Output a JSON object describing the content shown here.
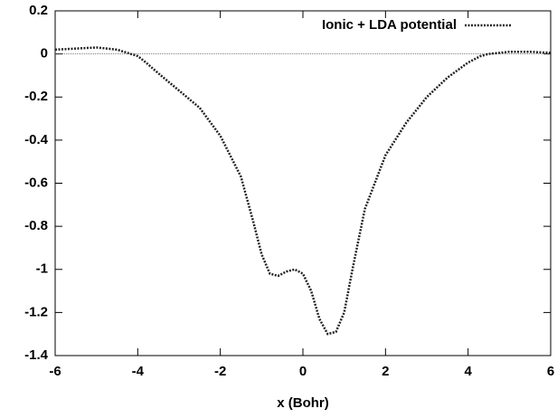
{
  "chart_data": {
    "type": "line",
    "xlabel": "x (Bohr)",
    "x": [
      -6,
      -5.5,
      -5,
      -4.5,
      -4,
      -3.8,
      -3.5,
      -3,
      -2.5,
      -2,
      -1.5,
      -1.2,
      -1,
      -0.8,
      -0.6,
      -0.4,
      -0.2,
      0,
      0.2,
      0.4,
      0.6,
      0.8,
      1,
      1.2,
      1.5,
      2,
      2.5,
      3,
      3.5,
      4,
      4.3,
      4.5,
      5,
      5.5,
      6
    ],
    "series": [
      {
        "name": "Ionic + LDA potential",
        "color": "#222222",
        "values": [
          0.02,
          0.025,
          0.03,
          0.02,
          -0.01,
          -0.04,
          -0.09,
          -0.17,
          -0.25,
          -0.38,
          -0.57,
          -0.78,
          -0.93,
          -1.02,
          -1.03,
          -1.01,
          -1.0,
          -1.02,
          -1.1,
          -1.23,
          -1.3,
          -1.29,
          -1.2,
          -1.0,
          -0.72,
          -0.47,
          -0.32,
          -0.2,
          -0.11,
          -0.04,
          -0.01,
          0.0,
          0.01,
          0.01,
          0.005
        ]
      }
    ],
    "xlim": [
      -6,
      6
    ],
    "xticks": [
      -6,
      -4,
      -2,
      0,
      2,
      4,
      6
    ],
    "ylim": [
      -1.4,
      0.2
    ],
    "yticks": [
      0.2,
      0,
      -0.2,
      -0.4,
      -0.6,
      -0.8,
      -1,
      -1.2,
      -1.4
    ],
    "hline": 0,
    "legend": "top-right"
  }
}
